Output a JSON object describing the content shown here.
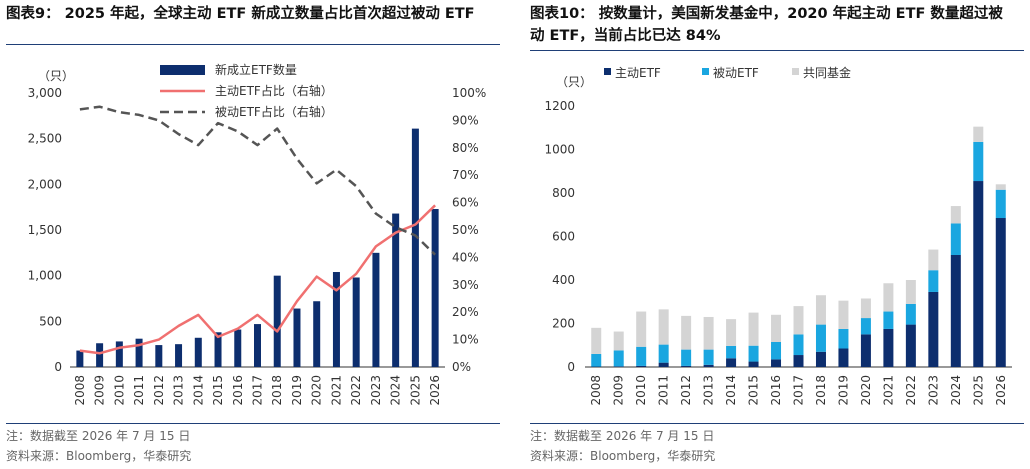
{
  "left": {
    "title": "图表9： 2025 年起，全球主动 ETF 新成立数量占比首次超过被动 ETF",
    "note": "注：数据截至 2026 年 7 月 15 日",
    "source": "资料来源：Bloomberg，华泰研究"
  },
  "right": {
    "title_line1": "图表10： 按数量计，美国新发基金中，2020 年起主动 ETF 数量超过被",
    "title_line2": "动 ETF，当前占比已达 84%",
    "note": "注：数据截至 2026 年 7 月 15 日",
    "source": "资料来源：Bloomberg，华泰研究"
  },
  "chart_data": [
    {
      "type": "bar",
      "categories": [
        "2008",
        "2009",
        "2010",
        "2011",
        "2012",
        "2013",
        "2014",
        "2015",
        "2016",
        "2017",
        "2018",
        "2019",
        "2020",
        "2021",
        "2022",
        "2023",
        "2024",
        "2025",
        "2026"
      ],
      "ylabel": "（只）",
      "ylim": [
        0,
        3000
      ],
      "yticks": [
        "0",
        "500",
        "1,000",
        "1,500",
        "2,000",
        "2,500",
        "3,000"
      ],
      "y2lim": [
        0,
        100
      ],
      "y2ticks": [
        "0%",
        "10%",
        "20%",
        "30%",
        "40%",
        "50%",
        "60%",
        "70%",
        "80%",
        "90%",
        "100%"
      ],
      "legend_position": "top-center",
      "series": [
        {
          "name": "新成立ETF数量",
          "kind": "bar",
          "axis": "left",
          "color": "#0d2e6e",
          "values": [
            180,
            260,
            280,
            310,
            240,
            250,
            320,
            380,
            410,
            470,
            1000,
            640,
            720,
            1040,
            980,
            1250,
            1680,
            2610,
            1730
          ]
        },
        {
          "name": "主动ETF占比（右轴）",
          "kind": "line",
          "axis": "right",
          "color": "#f07070",
          "values": [
            6,
            5,
            7,
            8,
            10,
            15,
            19,
            11,
            14,
            19,
            13,
            24,
            33,
            28,
            34,
            44,
            49,
            52,
            59
          ]
        },
        {
          "name": "被动ETF占比（右轴）",
          "kind": "line",
          "axis": "right",
          "color": "#555555",
          "dash": true,
          "values": [
            94,
            95,
            93,
            92,
            90,
            85,
            81,
            89,
            86,
            81,
            87,
            76,
            67,
            72,
            66,
            56,
            51,
            48,
            41
          ]
        }
      ]
    },
    {
      "type": "bar",
      "stacked": true,
      "categories": [
        "2008",
        "2009",
        "2010",
        "2011",
        "2012",
        "2013",
        "2014",
        "2015",
        "2016",
        "2017",
        "2018",
        "2019",
        "2020",
        "2021",
        "2022",
        "2023",
        "2024",
        "2025",
        "2026"
      ],
      "ylabel": "（只）",
      "ylim": [
        0,
        1200
      ],
      "yticks": [
        "0",
        "200",
        "400",
        "600",
        "800",
        "1000",
        "1200"
      ],
      "legend_position": "top-left",
      "series": [
        {
          "name": "主动ETF",
          "color": "#0d2e6e",
          "values": [
            2,
            3,
            5,
            20,
            5,
            10,
            40,
            25,
            35,
            55,
            70,
            85,
            150,
            175,
            195,
            345,
            515,
            855,
            685
          ]
        },
        {
          "name": "被动ETF",
          "color": "#1aa6e0",
          "values": [
            58,
            73,
            88,
            83,
            75,
            70,
            57,
            73,
            80,
            95,
            125,
            90,
            75,
            80,
            95,
            100,
            145,
            180,
            130
          ]
        },
        {
          "name": "共同基金",
          "color": "#d4d4d4",
          "values": [
            120,
            87,
            162,
            162,
            155,
            150,
            123,
            152,
            125,
            130,
            135,
            130,
            90,
            130,
            110,
            95,
            80,
            70,
            25
          ]
        }
      ]
    }
  ]
}
